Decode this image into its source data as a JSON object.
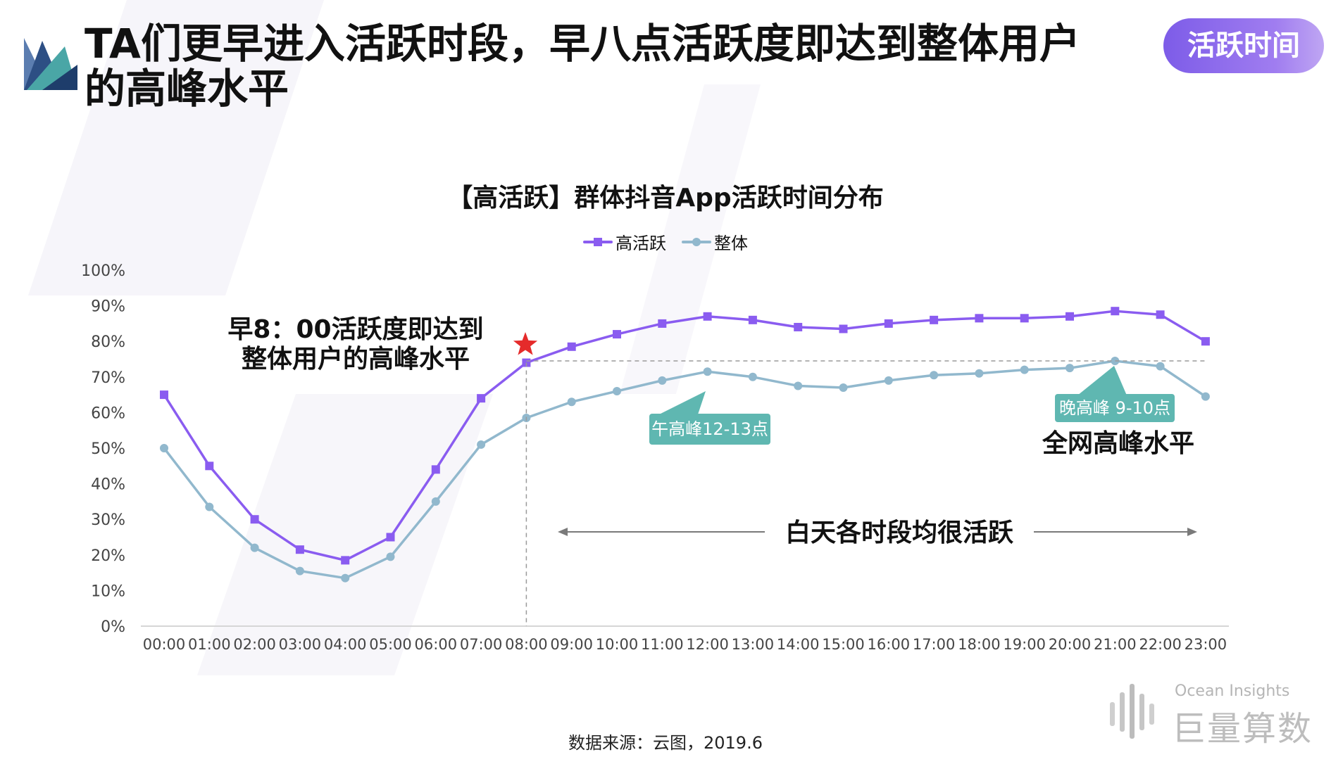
{
  "header": {
    "title": "TA们更早进入活跃时段，早八点活跃度即达到整体用户的高峰水平",
    "badge": "活跃时间"
  },
  "colors": {
    "high_active": "#8a5cf0",
    "overall": "#91b8cd",
    "badge": "#8d6cee",
    "callout": "#5fb7b1",
    "star": "#e52b2b"
  },
  "icons": {
    "logo": "fan-logo-icon",
    "star": "star-icon",
    "brand": "ocean-insights-logo-icon"
  },
  "chart_data": {
    "type": "line",
    "title": "【高活跃】群体抖音App活跃时间分布",
    "legend_position": "top-center",
    "grid": false,
    "categories": [
      "00:00",
      "01:00",
      "02:00",
      "03:00",
      "04:00",
      "05:00",
      "06:00",
      "07:00",
      "08:00",
      "09:00",
      "10:00",
      "11:00",
      "12:00",
      "13:00",
      "14:00",
      "15:00",
      "16:00",
      "17:00",
      "18:00",
      "19:00",
      "20:00",
      "21:00",
      "22:00",
      "23:00"
    ],
    "y_ticks": [
      "0%",
      "10%",
      "20%",
      "30%",
      "40%",
      "50%",
      "60%",
      "70%",
      "80%",
      "90%",
      "100%"
    ],
    "ylim": [
      0,
      100
    ],
    "series": [
      {
        "name": "高活跃",
        "values": [
          65,
          45,
          30,
          21.5,
          18.5,
          25,
          44,
          64,
          74,
          78.5,
          82,
          85,
          87,
          86,
          84,
          83.5,
          85,
          86,
          86.5,
          86.5,
          87,
          88.5,
          87.5,
          80
        ]
      },
      {
        "name": "整体",
        "values": [
          50,
          33.5,
          22,
          15.5,
          13.5,
          19.5,
          35,
          51,
          58.5,
          63,
          66,
          69,
          71.5,
          70,
          67.5,
          67,
          69,
          70.5,
          71,
          72,
          72.5,
          74.5,
          73,
          64.5
        ]
      }
    ],
    "annotations": {
      "morning": [
        "早8：00活跃度即达到",
        "整体用户的高峰水平"
      ],
      "noon_peak": "午高峰12-13点",
      "evening_peak": "晚高峰 9-10点",
      "network_peak": "全网高峰水平",
      "daytime": "白天各时段均很活跃"
    }
  },
  "footer": {
    "source": "数据来源：云图，2019.6",
    "brand_en": "Ocean Insights",
    "brand_cn": "巨量算数"
  }
}
